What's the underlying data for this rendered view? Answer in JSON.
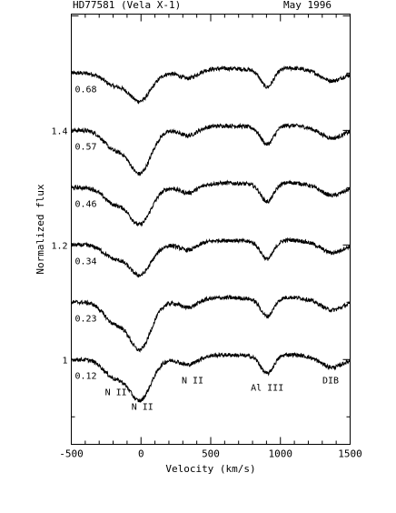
{
  "chart_data": {
    "type": "line",
    "title_left": "HD77581 (Vela X-1)",
    "title_right": "May 1996",
    "xlabel": "Velocity (km/s)",
    "ylabel": "Normalized flux",
    "xlim": [
      -500,
      1500
    ],
    "ylim": [
      0.852,
      1.603
    ],
    "x_ticks": [
      -500,
      0,
      500,
      1000,
      1500
    ],
    "y_ticks": [
      1,
      1.2,
      1.4
    ],
    "spectra": [
      {
        "phase": "0.68",
        "offset": 0.5,
        "depth": 0.65
      },
      {
        "phase": "0.57",
        "offset": 0.4,
        "depth": 1.0
      },
      {
        "phase": "0.46",
        "offset": 0.3,
        "depth": 0.85
      },
      {
        "phase": "0.34",
        "offset": 0.2,
        "depth": 0.7
      },
      {
        "phase": "0.23",
        "offset": 0.1,
        "depth": 1.1
      },
      {
        "phase": "0.12",
        "offset": 0.0,
        "depth": 0.95
      }
    ],
    "line_labels": [
      {
        "text": "N II",
        "x": -180,
        "y": 0.938
      },
      {
        "text": "N II",
        "x": 10,
        "y": 0.912
      },
      {
        "text": "N II",
        "x": 370,
        "y": 0.958
      },
      {
        "text": "Al III",
        "x": 905,
        "y": 0.946
      },
      {
        "text": "DIB",
        "x": 1360,
        "y": 0.958
      }
    ]
  }
}
